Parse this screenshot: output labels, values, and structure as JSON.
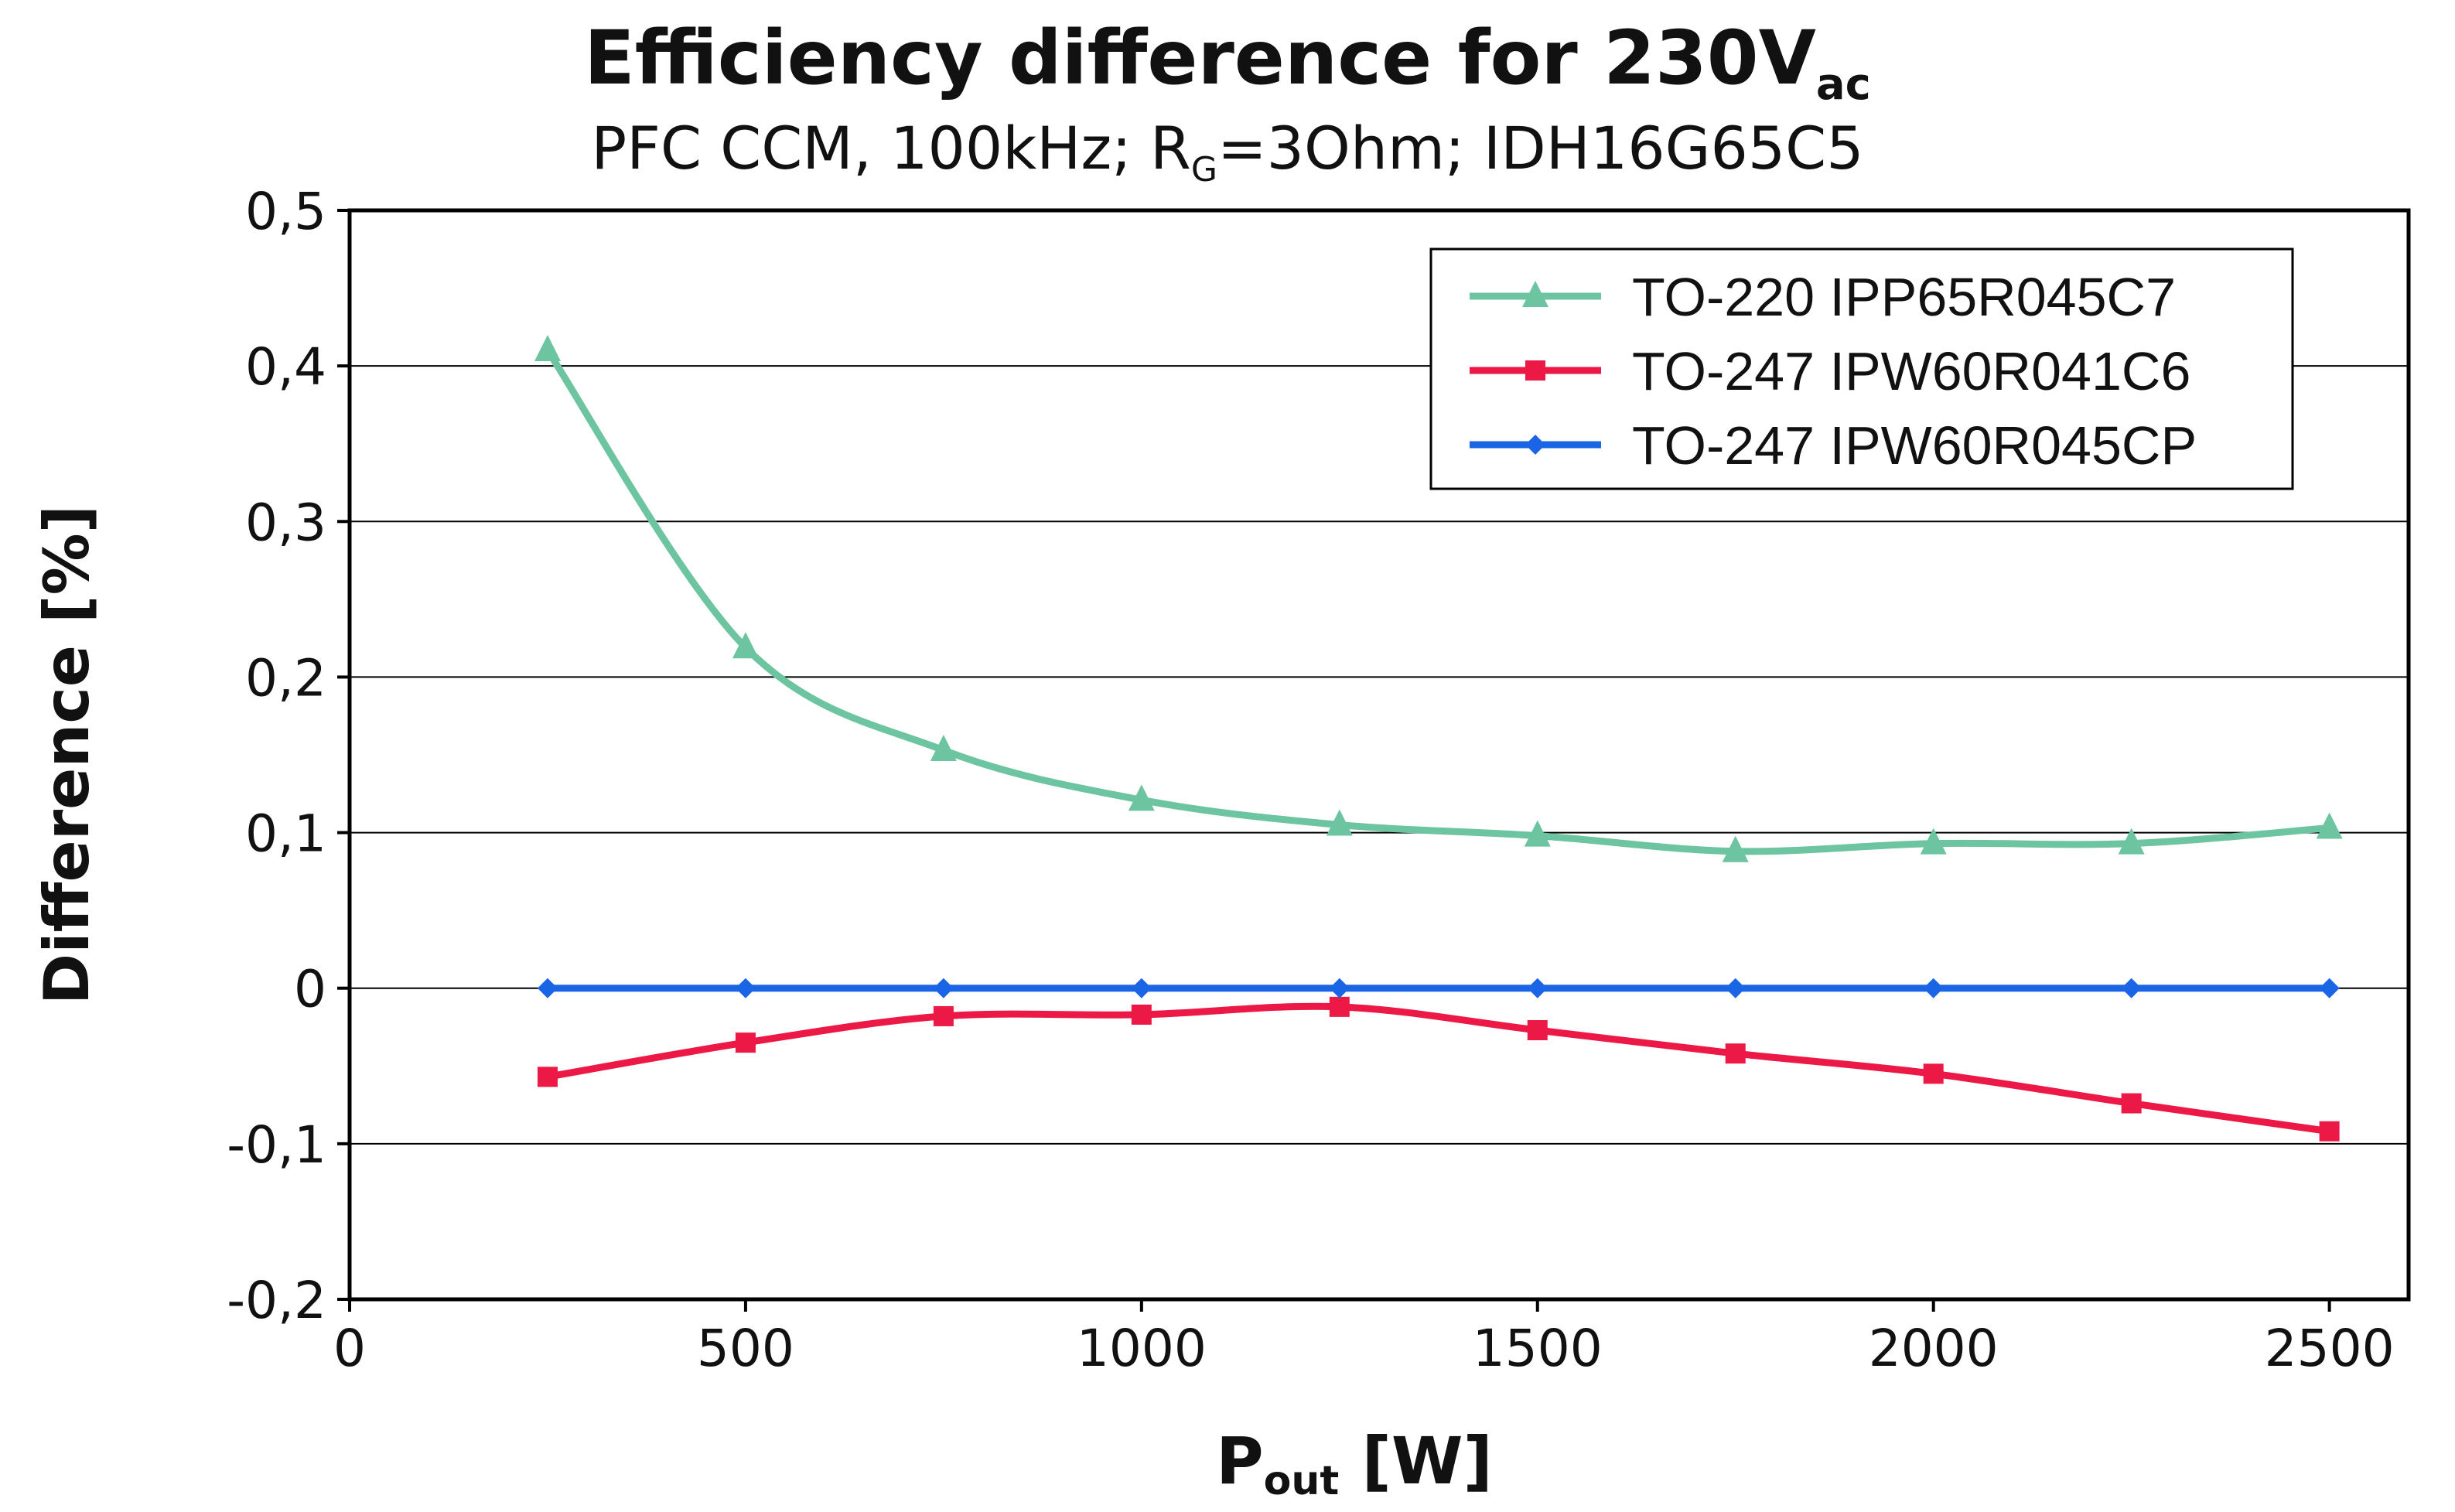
{
  "chart_data": {
    "type": "line",
    "title": {
      "main": "Efficiency difference for 230V",
      "sub": "ac"
    },
    "subtitle": {
      "pre": "PFC CCM, 100kHz; R",
      "sub": "G",
      "post": "=3Ohm; IDH16G65C5"
    },
    "xlabel": {
      "main": "P",
      "sub": "out",
      "post": " [W]"
    },
    "ylabel": "Difference [%]",
    "xlim": [
      0,
      2600
    ],
    "ylim": [
      -0.2,
      0.5
    ],
    "x_ticks": [
      0,
      500,
      1000,
      1500,
      2000,
      2500
    ],
    "x_tick_labels": [
      "0",
      "500",
      "1000",
      "1500",
      "2000",
      "2500"
    ],
    "y_ticks": [
      0.5,
      0.4,
      0.3,
      0.2,
      0.1,
      0,
      -0.1,
      -0.2
    ],
    "y_tick_labels": [
      "0,5",
      "0,4",
      "0,3",
      "0,2",
      "0,1",
      "0",
      "-0,1",
      "-0,2"
    ],
    "grid": "horizontal",
    "legend_position": "top-right",
    "x": [
      250,
      500,
      750,
      1000,
      1250,
      1500,
      1750,
      2000,
      2250,
      2500
    ],
    "series": [
      {
        "name": "TO-220 IPP65R045C7",
        "color": "#6cc4a0",
        "marker": "triangle",
        "values": [
          0.41,
          0.219,
          0.153,
          0.121,
          0.105,
          0.098,
          0.088,
          0.093,
          0.093,
          0.103
        ]
      },
      {
        "name": "TO-247 IPW60R041C6",
        "color": "#ec1846",
        "marker": "square",
        "values": [
          -0.057,
          -0.035,
          -0.018,
          -0.017,
          -0.012,
          -0.027,
          -0.042,
          -0.055,
          -0.074,
          -0.092
        ]
      },
      {
        "name": "TO-247 IPW60R045CP",
        "color": "#1a64e6",
        "marker": "diamond",
        "values": [
          0,
          0,
          0,
          0,
          0,
          0,
          0,
          0,
          0,
          0
        ]
      }
    ]
  }
}
